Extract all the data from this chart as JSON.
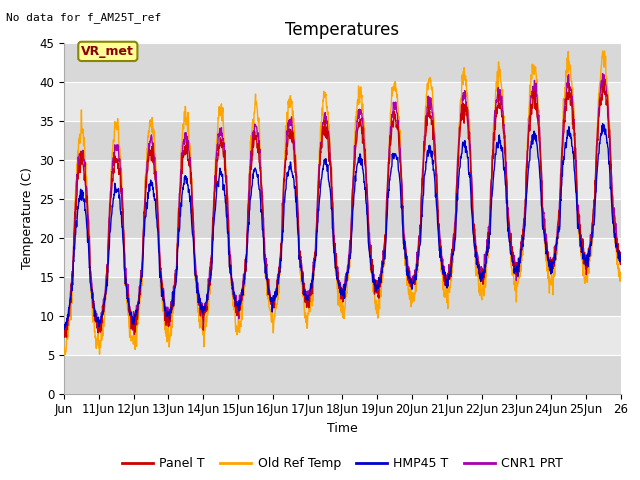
{
  "title": "Temperatures",
  "ylabel": "Temperature (C)",
  "xlabel": "Time",
  "note": "No data for f_AM25T_ref",
  "vr_label": "VR_met",
  "ylim": [
    0,
    45
  ],
  "tick_labels": [
    "Jun",
    "11Jun",
    "12Jun",
    "13Jun",
    "14Jun",
    "15Jun",
    "16Jun",
    "17Jun",
    "18Jun",
    "19Jun",
    "20Jun",
    "21Jun",
    "22Jun",
    "23Jun",
    "24Jun",
    "25Jun",
    "26"
  ],
  "legend": [
    "Panel T",
    "Old Ref Temp",
    "HMP45 T",
    "CNR1 PRT"
  ],
  "colors": {
    "panel_t": "#CC0000",
    "old_ref": "#FFA500",
    "hmp45": "#0000CC",
    "cnr1": "#AA00AA"
  },
  "fig_bg": "#FFFFFF",
  "ax_bg": "#E8E8E8",
  "grid_color": "#FFFFFF",
  "title_fontsize": 12,
  "label_fontsize": 9,
  "tick_fontsize": 8.5,
  "n_days": 16,
  "points_per_day": 96
}
